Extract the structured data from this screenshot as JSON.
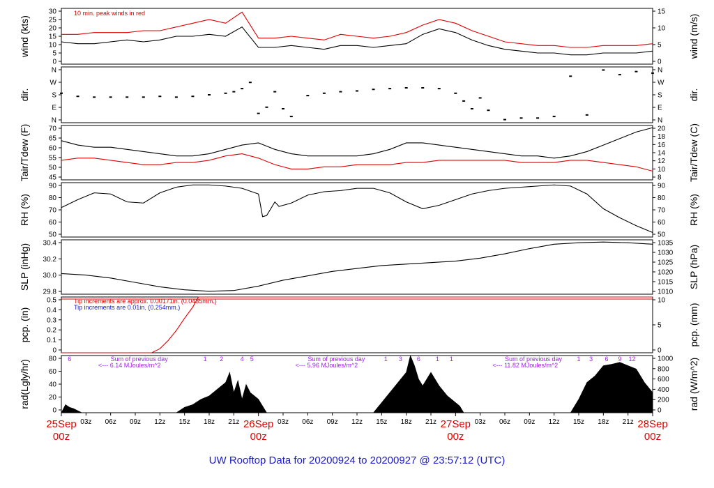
{
  "title": "UW Rooftop Data for 20200924  to  20200927 @ 23:57:12  (UTC)",
  "colors": {
    "red": "#e00000",
    "blue": "#1a1acc",
    "purple": "#a020f0",
    "black": "#000000"
  },
  "x_axis": {
    "day_labels": [
      {
        "line1": "25Sep",
        "line2": "00z",
        "hour": 0
      },
      {
        "line1": "26Sep",
        "line2": "00z",
        "hour": 24
      },
      {
        "line1": "27Sep",
        "line2": "00z",
        "hour": 48
      },
      {
        "line1": "28Sep",
        "line2": "00z",
        "hour": 72
      }
    ],
    "hour_labels": [
      "03z",
      "06z",
      "09z",
      "12z",
      "15z",
      "18z",
      "21z"
    ]
  },
  "chart_data": [
    {
      "id": "wind",
      "type": "line",
      "ylabel_left": "wind (kts)",
      "ylabel_right": "wind (m/s)",
      "ylim": [
        0,
        30
      ],
      "yticks_left": [
        "0",
        "5",
        "10",
        "15",
        "20",
        "25",
        "30"
      ],
      "yticks_right": [
        "0",
        "5",
        "10",
        "15"
      ],
      "annotation": "10 min. peak winds in red",
      "series": [
        {
          "name": "wind",
          "color": "#000000",
          "x": [
            0,
            2,
            4,
            6,
            8,
            10,
            12,
            14,
            16,
            18,
            20,
            22,
            24,
            26,
            28,
            30,
            32,
            34,
            36,
            38,
            40,
            42,
            44,
            46,
            48,
            50,
            52,
            54,
            56,
            58,
            60,
            62,
            64,
            66,
            68,
            70,
            72
          ],
          "y": [
            12,
            11,
            11,
            12,
            13,
            12,
            13,
            15,
            15,
            16,
            15,
            20,
            9,
            9,
            10,
            9,
            8,
            10,
            10,
            9,
            10,
            11,
            16,
            19,
            17,
            13,
            10,
            8,
            7,
            6,
            6,
            5,
            5,
            6,
            6,
            6,
            7
          ]
        },
        {
          "name": "10 min. peak",
          "color": "#e00000",
          "x": [
            0,
            2,
            4,
            6,
            8,
            10,
            12,
            14,
            16,
            18,
            20,
            22,
            24,
            26,
            28,
            30,
            32,
            34,
            36,
            38,
            40,
            42,
            44,
            46,
            48,
            50,
            52,
            54,
            56,
            58,
            60,
            62,
            64,
            66,
            68,
            70,
            72
          ],
          "y": [
            16,
            16,
            17,
            17,
            17,
            18,
            18,
            20,
            22,
            24,
            22,
            28,
            14,
            14,
            15,
            14,
            13,
            16,
            15,
            14,
            15,
            17,
            21,
            24,
            22,
            18,
            15,
            12,
            11,
            10,
            10,
            9,
            9,
            10,
            10,
            10,
            11
          ]
        }
      ]
    },
    {
      "id": "dir",
      "type": "scatter",
      "ylabel_left": "dir.",
      "ylabel_right": "dir.",
      "ylim": [
        0,
        360
      ],
      "yticks_left": [
        "N",
        "E",
        "S",
        "W",
        "N"
      ],
      "yticks_right": [
        "N",
        "E",
        "S",
        "W",
        "N"
      ],
      "series": [
        {
          "name": "direction",
          "color": "#000000",
          "x": [
            0,
            2,
            4,
            6,
            8,
            10,
            12,
            14,
            16,
            18,
            20,
            21,
            22,
            23,
            24,
            25,
            26,
            27,
            28,
            30,
            32,
            34,
            36,
            38,
            40,
            42,
            44,
            46,
            48,
            49,
            50,
            51,
            52,
            54,
            56,
            58,
            60,
            62,
            64,
            66,
            68,
            70,
            72
          ],
          "y": [
            190,
            170,
            165,
            165,
            165,
            165,
            170,
            165,
            170,
            180,
            190,
            200,
            220,
            260,
            60,
            100,
            200,
            90,
            40,
            175,
            190,
            200,
            205,
            215,
            220,
            225,
            225,
            220,
            190,
            140,
            90,
            160,
            80,
            20,
            30,
            30,
            40,
            300,
            50,
            340,
            310,
            330,
            320
          ]
        }
      ]
    },
    {
      "id": "temp",
      "type": "line",
      "ylabel_left": "Tair/Tdew (F)",
      "ylabel_right": "Tair/Tdew (C)",
      "ylim": [
        45,
        70
      ],
      "yticks_left": [
        "45",
        "50",
        "55",
        "60",
        "65",
        "70"
      ],
      "yticks_right": [
        "8",
        "10",
        "12",
        "14",
        "16",
        "18",
        "20"
      ],
      "series": [
        {
          "name": "Tair",
          "color": "#000000",
          "x": [
            0,
            2,
            4,
            6,
            8,
            10,
            12,
            14,
            16,
            18,
            20,
            22,
            24,
            26,
            28,
            30,
            32,
            34,
            36,
            38,
            40,
            42,
            44,
            46,
            48,
            50,
            52,
            54,
            56,
            58,
            60,
            62,
            64,
            66,
            68,
            70,
            72
          ],
          "y": [
            63,
            61,
            60,
            60,
            59,
            58,
            57,
            56,
            56,
            57,
            59,
            61,
            62,
            59,
            57,
            56,
            56,
            56,
            56,
            57,
            59,
            62,
            62,
            61,
            60,
            59,
            58,
            57,
            56,
            56,
            55,
            56,
            58,
            61,
            64,
            67,
            69
          ]
        },
        {
          "name": "Tdew",
          "color": "#e00000",
          "x": [
            0,
            2,
            4,
            6,
            8,
            10,
            12,
            14,
            16,
            18,
            20,
            22,
            24,
            26,
            28,
            30,
            32,
            34,
            36,
            38,
            40,
            42,
            44,
            46,
            48,
            50,
            52,
            54,
            56,
            58,
            60,
            62,
            64,
            66,
            68,
            70,
            72
          ],
          "y": [
            54,
            55,
            55,
            54,
            53,
            52,
            52,
            53,
            53,
            54,
            56,
            57,
            55,
            52,
            50,
            50,
            51,
            51,
            52,
            52,
            52,
            53,
            53,
            54,
            54,
            54,
            54,
            54,
            53,
            53,
            53,
            54,
            54,
            53,
            52,
            51,
            49
          ]
        }
      ]
    },
    {
      "id": "rh",
      "type": "line",
      "ylabel_left": "RH (%)",
      "ylabel_right": "RH (%)",
      "ylim": [
        45,
        93
      ],
      "yticks_left": [
        "50",
        "60",
        "70",
        "80",
        "90"
      ],
      "yticks_right": [
        "50",
        "60",
        "70",
        "80",
        "90"
      ],
      "series": [
        {
          "name": "RH",
          "color": "#000000",
          "x": [
            0,
            2,
            4,
            6,
            8,
            10,
            12,
            14,
            16,
            18,
            20,
            22,
            24,
            24.5,
            25,
            26,
            26.5,
            28,
            30,
            32,
            34,
            36,
            38,
            40,
            42,
            44,
            46,
            48,
            50,
            52,
            54,
            56,
            58,
            60,
            62,
            64,
            66,
            68,
            70,
            72
          ],
          "y": [
            71,
            78,
            84,
            83,
            76,
            75,
            84,
            89,
            91,
            91,
            90,
            88,
            83,
            63,
            64,
            76,
            72,
            75,
            82,
            85,
            86,
            88,
            88,
            84,
            76,
            70,
            73,
            78,
            83,
            86,
            88,
            89,
            90,
            91,
            90,
            83,
            70,
            62,
            55,
            49
          ]
        }
      ]
    },
    {
      "id": "slp",
      "type": "line",
      "ylabel_left": "SLP (inHg)",
      "ylabel_right": "SLP (hPa)",
      "ylim": [
        29.74,
        30.48
      ],
      "yticks_left": [
        "29.8",
        "30.0",
        "30.2",
        "30.4"
      ],
      "yticks_right": [
        "1010",
        "1015",
        "1020",
        "1025",
        "1030",
        "1035"
      ],
      "series": [
        {
          "name": "SLP",
          "color": "#000000",
          "x": [
            0,
            3,
            6,
            9,
            12,
            15,
            18,
            21,
            24,
            27,
            30,
            33,
            36,
            39,
            42,
            45,
            48,
            51,
            54,
            57,
            60,
            63,
            66,
            69,
            72
          ],
          "y": [
            30.02,
            30.0,
            29.96,
            29.9,
            29.84,
            29.8,
            29.78,
            29.79,
            29.85,
            29.93,
            29.99,
            30.05,
            30.09,
            30.13,
            30.15,
            30.17,
            30.19,
            30.23,
            30.29,
            30.36,
            30.42,
            30.44,
            30.45,
            30.44,
            30.42
          ]
        }
      ]
    },
    {
      "id": "pcp",
      "type": "line",
      "ylabel_left": "pcp. (in)",
      "ylabel_right": "pcp. (mm)",
      "ylim": [
        0,
        0.55
      ],
      "yticks_left": [
        "0",
        "0.1",
        "0.2",
        "0.3",
        "0.4",
        "0.5"
      ],
      "yticks_right": [
        "0",
        "5",
        "10"
      ],
      "annotation_red": "Tip increments are approx. 0.00171in. (0.0435mm.)",
      "annotation_blue": "Tip increments are 0.01in. (0.254mm.)",
      "series": [
        {
          "name": "pcp",
          "color": "#e00000",
          "x": [
            0,
            11,
            12,
            13,
            14,
            15,
            16,
            16.7,
            17,
            24,
            48,
            72
          ],
          "y": [
            0,
            0,
            0.04,
            0.12,
            0.22,
            0.34,
            0.45,
            0.55,
            0.55,
            0.55,
            0.55,
            0.55
          ]
        }
      ]
    },
    {
      "id": "rad",
      "type": "area",
      "ylabel_left": "rad(Lgly/hr)",
      "ylabel_right": "rad (W/m^2)",
      "ylim": [
        0,
        85
      ],
      "yticks_left": [
        "0",
        "20",
        "40",
        "60",
        "80"
      ],
      "yticks_right": [
        "0",
        "200",
        "400",
        "600",
        "800",
        "1000"
      ],
      "day_sums": [
        {
          "label": "Sum of previous day",
          "value": "<--- 6.14 MJoules/m^2",
          "hour": 6
        },
        {
          "label": "Sum of previous day",
          "value": "<--- 5.96 MJoules/m^2",
          "hour": 30
        },
        {
          "label": "Sum of previous day",
          "value": "<--- 11.82 MJoules/m^2",
          "hour": 54
        }
      ],
      "hour_marks": [
        {
          "text": "6",
          "hour": 1
        },
        {
          "text": "1",
          "hour": 17.5
        },
        {
          "text": "2",
          "hour": 19.5
        },
        {
          "text": "4",
          "hour": 22
        },
        {
          "text": "5",
          "hour": 23.2
        },
        {
          "text": "1",
          "hour": 39.5
        },
        {
          "text": "3",
          "hour": 41.3
        },
        {
          "text": "6",
          "hour": 43.5
        },
        {
          "text": "1",
          "hour": 45.8
        },
        {
          "text": "1",
          "hour": 47.5
        },
        {
          "text": "1",
          "hour": 63
        },
        {
          "text": "3",
          "hour": 64.5
        },
        {
          "text": "6",
          "hour": 66.4
        },
        {
          "text": "9",
          "hour": 68
        },
        {
          "text": "12",
          "hour": 69.5
        }
      ],
      "series": [
        {
          "name": "radiation",
          "color": "#000000",
          "x": [
            0,
            0.5,
            1,
            1.5,
            2,
            2.5,
            14,
            15,
            16,
            17,
            18,
            19,
            20,
            20.5,
            21,
            21.5,
            22,
            22.5,
            23,
            23.5,
            24,
            24.5,
            25,
            38,
            39,
            40,
            41,
            42,
            42.5,
            43,
            43.5,
            44,
            45,
            46,
            47,
            48,
            48.5,
            49,
            62,
            63,
            64,
            65,
            66,
            67,
            68,
            69,
            70,
            71,
            72
          ],
          "y": [
            0,
            12,
            8,
            6,
            3,
            0,
            0,
            8,
            12,
            20,
            25,
            35,
            45,
            60,
            30,
            48,
            20,
            42,
            30,
            25,
            20,
            10,
            0,
            0,
            15,
            30,
            45,
            60,
            85,
            70,
            50,
            40,
            60,
            40,
            25,
            15,
            10,
            0,
            0,
            20,
            45,
            55,
            70,
            72,
            75,
            70,
            65,
            45,
            30
          ]
        }
      ]
    }
  ]
}
